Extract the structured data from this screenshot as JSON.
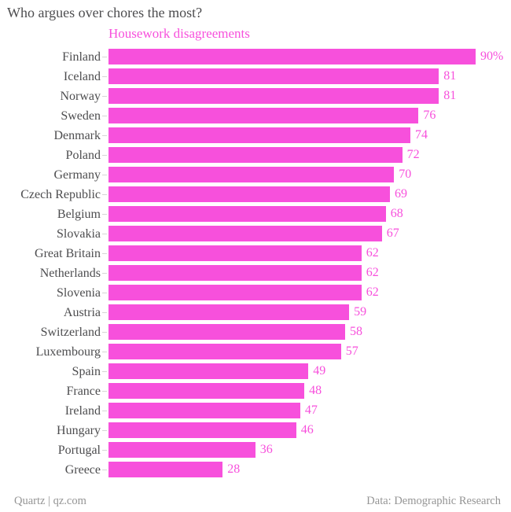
{
  "title": "Who argues over chores the most?",
  "legend_label": "Housework disagreements",
  "footer": {
    "left": "Quartz | qz.com",
    "right": "Data: Demographic Research"
  },
  "colors": {
    "bar": "#f750dc",
    "value_text": "#f750dc",
    "title_text": "#4d4d4f",
    "category_text": "#4d4d4f",
    "footer_text": "#949494",
    "tick": "#d6d6d6"
  },
  "chart_data": {
    "type": "bar",
    "orientation": "horizontal",
    "title": "Who argues over chores the most?",
    "series_label": "Housework disagreements",
    "categories": [
      "Finland",
      "Iceland",
      "Norway",
      "Sweden",
      "Denmark",
      "Poland",
      "Germany",
      "Czech Republic",
      "Belgium",
      "Slovakia",
      "Great Britain",
      "Netherlands",
      "Slovenia",
      "Austria",
      "Switzerland",
      "Luxembourg",
      "Spain",
      "France",
      "Ireland",
      "Hungary",
      "Portugal",
      "Greece"
    ],
    "values": [
      90,
      81,
      81,
      76,
      74,
      72,
      70,
      69,
      68,
      67,
      62,
      62,
      62,
      59,
      58,
      57,
      49,
      48,
      47,
      46,
      36,
      28
    ],
    "value_labels": [
      "90%",
      "81",
      "81",
      "76",
      "74",
      "72",
      "70",
      "69",
      "68",
      "67",
      "62",
      "62",
      "62",
      "59",
      "58",
      "57",
      "49",
      "48",
      "47",
      "46",
      "36",
      "28"
    ],
    "xlim": [
      0,
      90
    ],
    "unit": "percent",
    "grid": false,
    "legend_position": "top"
  }
}
